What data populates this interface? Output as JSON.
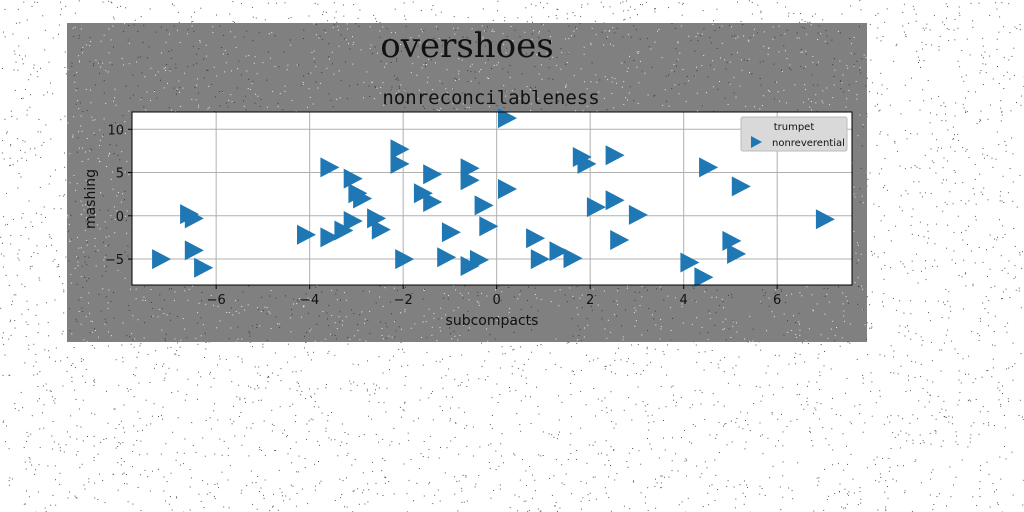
{
  "figure": {
    "suptitle": "overshoes",
    "colors": {
      "figure_bg": "#808080",
      "axes_bg": "#ffffff",
      "marker": "#1f77b4",
      "grid": "#b0b0b0",
      "legend_bg": "#d9d9d9"
    }
  },
  "chart_data": {
    "type": "scatter",
    "title": "nonreconcilableness",
    "xlabel": "subcompacts",
    "ylabel": "mashing",
    "xlim": [
      -7.8,
      7.6
    ],
    "ylim": [
      -8,
      12
    ],
    "xticks": [
      -6,
      -4,
      -2,
      0,
      2,
      4,
      6
    ],
    "yticks": [
      -5,
      0,
      5,
      10
    ],
    "grid": true,
    "marker": "triangle-right",
    "legend": {
      "title": "trumpet",
      "entries": [
        "nonreverential"
      ],
      "placement": "top-right"
    },
    "series": [
      {
        "name": "nonreverential",
        "points": [
          [
            -7.2,
            -5.0
          ],
          [
            -6.6,
            0.2
          ],
          [
            -6.5,
            -0.3
          ],
          [
            -6.5,
            -4.0
          ],
          [
            -6.3,
            -6.0
          ],
          [
            -4.1,
            -2.2
          ],
          [
            -3.6,
            5.6
          ],
          [
            -3.6,
            -2.5
          ],
          [
            -3.3,
            -1.7
          ],
          [
            -3.1,
            4.3
          ],
          [
            -3.1,
            -0.6
          ],
          [
            -3.0,
            2.6
          ],
          [
            -2.9,
            2.0
          ],
          [
            -2.6,
            -0.3
          ],
          [
            -2.5,
            -1.6
          ],
          [
            -2.1,
            7.7
          ],
          [
            -2.1,
            6.0
          ],
          [
            -2.0,
            -5.0
          ],
          [
            -1.6,
            2.6
          ],
          [
            -1.4,
            4.8
          ],
          [
            -1.4,
            1.6
          ],
          [
            -1.1,
            -4.8
          ],
          [
            -1.0,
            -1.9
          ],
          [
            -0.6,
            5.5
          ],
          [
            -0.6,
            4.1
          ],
          [
            -0.6,
            -5.8
          ],
          [
            -0.4,
            -5.1
          ],
          [
            -0.3,
            1.2
          ],
          [
            -0.2,
            -1.2
          ],
          [
            0.2,
            11.3
          ],
          [
            0.2,
            3.1
          ],
          [
            0.8,
            -2.6
          ],
          [
            0.9,
            -5.0
          ],
          [
            1.3,
            -4.1
          ],
          [
            1.6,
            -4.9
          ],
          [
            1.8,
            6.8
          ],
          [
            1.9,
            6.0
          ],
          [
            2.1,
            1.0
          ],
          [
            2.5,
            7.0
          ],
          [
            2.5,
            1.8
          ],
          [
            2.6,
            -2.8
          ],
          [
            3.0,
            0.1
          ],
          [
            4.1,
            -5.4
          ],
          [
            4.4,
            -7.1
          ],
          [
            4.5,
            5.6
          ],
          [
            5.0,
            -2.9
          ],
          [
            5.1,
            -4.4
          ],
          [
            5.2,
            3.4
          ],
          [
            7.0,
            -0.4
          ]
        ]
      }
    ]
  }
}
